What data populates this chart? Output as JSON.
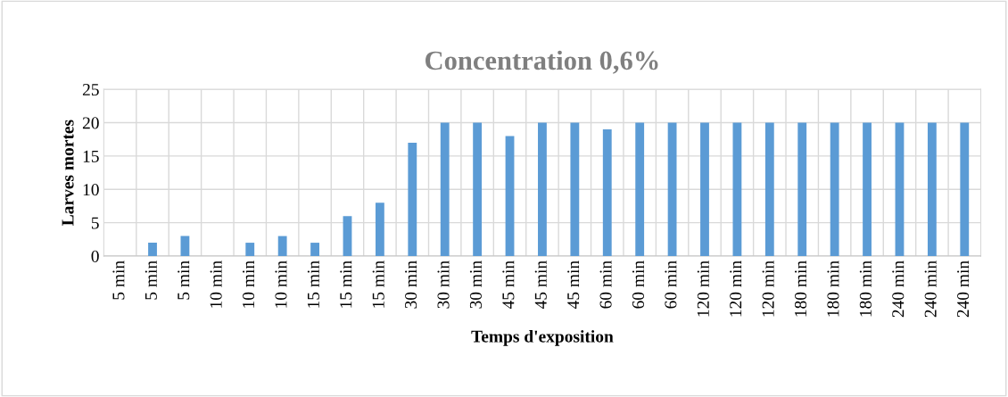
{
  "chart_data": {
    "type": "bar",
    "title": "Concentration 0,6%",
    "xlabel": "Temps d'exposition",
    "ylabel": "Larves mortes",
    "categories": [
      "5 min",
      "5 min",
      "5 min",
      "10 min",
      "10 min",
      "10 min",
      "15 min",
      "15 min",
      "15 min",
      "30 min",
      "30 min",
      "30 min",
      "45 min",
      "45 min",
      "45 min",
      "60 min",
      "60 min",
      "60 min",
      "120 min",
      "120 min",
      "120 min",
      "180 min",
      "180 min",
      "180 min",
      "240 min",
      "240 min",
      "240 min"
    ],
    "values": [
      0,
      2,
      3,
      0,
      2,
      3,
      2,
      6,
      8,
      17,
      20,
      20,
      18,
      20,
      20,
      19,
      20,
      20,
      20,
      20,
      20,
      20,
      20,
      20,
      20,
      20,
      20
    ],
    "color": "#5b9bd5",
    "ylim": [
      0,
      25
    ],
    "yticks": [
      0,
      5,
      10,
      15,
      20,
      25
    ],
    "grid": true
  }
}
